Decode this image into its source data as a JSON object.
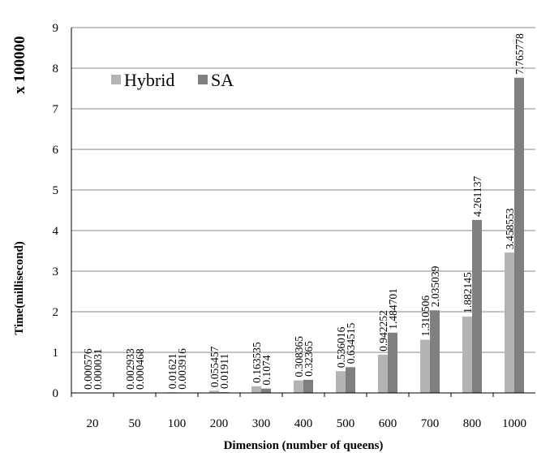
{
  "chart_data": {
    "type": "bar",
    "categories": [
      "20",
      "50",
      "100",
      "200",
      "300",
      "400",
      "500",
      "600",
      "700",
      "800",
      "1000"
    ],
    "series": [
      {
        "name": "Hybrid",
        "color": "#b4b4b4",
        "values": [
          0.000576,
          0.002933,
          0.01621,
          0.055457,
          0.163535,
          0.308365,
          0.536016,
          0.942252,
          1.310506,
          1.882145,
          3.458553
        ],
        "labels": [
          "0.000576",
          "0.002933",
          "0.01621",
          "0.055457",
          "0.163535",
          "0.308365",
          "0.536016",
          "0.942252",
          "1.310506",
          "1.882145",
          "3.458553"
        ]
      },
      {
        "name": "SA",
        "color": "#7f7f7f",
        "values": [
          3.1e-05,
          0.000468,
          0.003916,
          0.01911,
          0.1074,
          0.32365,
          0.634515,
          1.484701,
          2.035039,
          4.261137,
          7.765778
        ],
        "labels": [
          "0.000031",
          "0.000468",
          "0.003916",
          "0.01911",
          "0.1074",
          "0.32365",
          "0.634515",
          "1.484701",
          "2.035039",
          "4.261137",
          "7.765778"
        ]
      }
    ],
    "xlabel": "Dimension (number of queens)",
    "ylabel": "Time(millisecond)",
    "scale_note": "x 100000",
    "ylim": [
      0,
      9
    ],
    "yticks": [
      "0",
      "1",
      "2",
      "3",
      "4",
      "5",
      "6",
      "7",
      "8",
      "9"
    ],
    "grid": true,
    "legend_position": "top-left"
  }
}
